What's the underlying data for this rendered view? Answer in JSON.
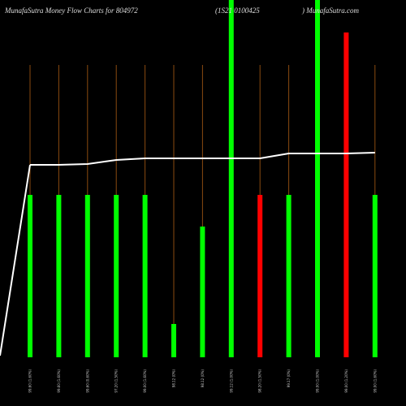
{
  "chart_data": {
    "type": "bar",
    "title": "MunafaSutra  Money Flow  Charts for 804972",
    "subtitle": "(1S21 0100425",
    "source": ") MunafaSutra.com",
    "categories": [
      "99.60 (1.60%)",
      "99.60 (1.60%)",
      "99.60 (0.60%)",
      "97.20 (1.50%)",
      "99.00 (1.60%)",
      "98.12 (0%)",
      "98.12 (0%)",
      "99.12 (1.00%)",
      "98.20 (1.50%)",
      "99.17 (0%)",
      "99.00 (1.00%)",
      "99.00 (1.20%)",
      "99.00 (1.60%)"
    ],
    "ylim": [
      0,
      440
    ],
    "series": [
      {
        "type": "bar",
        "colors": [
          "#00ff00",
          "#00ff00",
          "#00ff00",
          "#00ff00",
          "#00ff00",
          "#00ff00",
          "#00ff00",
          "#00ff00",
          "#ff0000",
          "#00ff00",
          "#00ff00",
          "#ff0000",
          "#00ff00"
        ],
        "values": [
          200,
          200,
          200,
          200,
          200,
          41,
          161,
          450,
          200,
          200,
          450,
          400,
          200
        ]
      },
      {
        "type": "line",
        "color": "#ffffff",
        "start": 2,
        "values": [
          237,
          237,
          238,
          243,
          245,
          245,
          245,
          245,
          245,
          251,
          251,
          251,
          252
        ]
      }
    ]
  }
}
